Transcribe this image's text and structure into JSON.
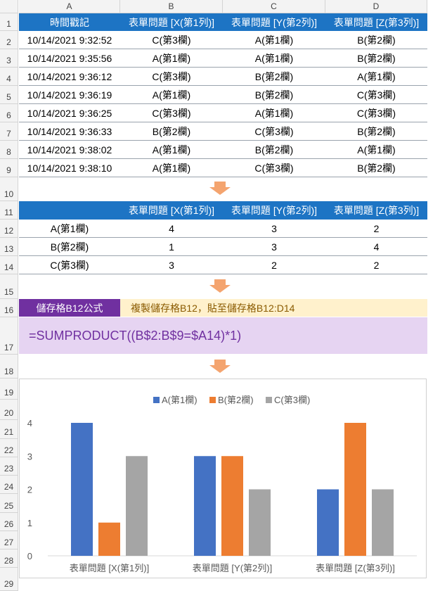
{
  "columns": [
    "A",
    "B",
    "C",
    "D"
  ],
  "rows": [
    "1",
    "2",
    "3",
    "4",
    "5",
    "6",
    "7",
    "8",
    "9",
    "10",
    "11",
    "12",
    "13",
    "14",
    "15",
    "16",
    "17",
    "18",
    "19",
    "20",
    "21",
    "22",
    "23",
    "24",
    "25",
    "26",
    "27",
    "28",
    "29"
  ],
  "data_table": {
    "headers": [
      "時間戳記",
      "表單問題 [X(第1列)]",
      "表單問題 [Y(第2列)]",
      "表單問題 [Z(第3列)]"
    ],
    "rows": [
      [
        "10/14/2021 9:32:52",
        "C(第3欄)",
        "A(第1欄)",
        "B(第2欄)"
      ],
      [
        "10/14/2021 9:35:56",
        "A(第1欄)",
        "A(第1欄)",
        "B(第2欄)"
      ],
      [
        "10/14/2021 9:36:12",
        "C(第3欄)",
        "B(第2欄)",
        "A(第1欄)"
      ],
      [
        "10/14/2021 9:36:19",
        "A(第1欄)",
        "B(第2欄)",
        "C(第3欄)"
      ],
      [
        "10/14/2021 9:36:25",
        "C(第3欄)",
        "A(第1欄)",
        "C(第3欄)"
      ],
      [
        "10/14/2021 9:36:33",
        "B(第2欄)",
        "C(第3欄)",
        "B(第2欄)"
      ],
      [
        "10/14/2021 9:38:02",
        "A(第1欄)",
        "B(第2欄)",
        "A(第1欄)"
      ],
      [
        "10/14/2021 9:38:10",
        "A(第1欄)",
        "C(第3欄)",
        "B(第2欄)"
      ]
    ]
  },
  "summary_table": {
    "headers": [
      "",
      "表單問題 [X(第1列)]",
      "表單問題 [Y(第2列)]",
      "表單問題 [Z(第3列)]"
    ],
    "rows": [
      [
        "A(第1欄)",
        "4",
        "3",
        "2"
      ],
      [
        "B(第2欄)",
        "1",
        "3",
        "4"
      ],
      [
        "C(第3欄)",
        "3",
        "2",
        "2"
      ]
    ]
  },
  "formula_section": {
    "label": "儲存格B12公式",
    "note": "複製儲存格B12，貼至儲存格B12:D14",
    "formula": "=SUMPRODUCT((B$2:B$9=$A14)*1)"
  },
  "colors": {
    "header_blue": "#1d74c4",
    "arrow_orange": "#f4a46f",
    "purple": "#7030a0",
    "series_a": "#4472c4",
    "series_b": "#ed7d31",
    "series_c": "#a5a5a5"
  },
  "chart_data": {
    "type": "bar",
    "categories": [
      "表單問題 [X(第1列)]",
      "表單問題 [Y(第2列)]",
      "表單問題 [Z(第3列)]"
    ],
    "series": [
      {
        "name": "A(第1欄)",
        "values": [
          4,
          3,
          2
        ],
        "color": "#4472c4"
      },
      {
        "name": "B(第2欄)",
        "values": [
          1,
          3,
          4
        ],
        "color": "#ed7d31"
      },
      {
        "name": "C(第3欄)",
        "values": [
          3,
          2,
          2
        ],
        "color": "#a5a5a5"
      }
    ],
    "yticks": [
      "0",
      "1",
      "2",
      "3",
      "4"
    ],
    "ylim": [
      0,
      4
    ],
    "legend": "top",
    "grid": false
  }
}
